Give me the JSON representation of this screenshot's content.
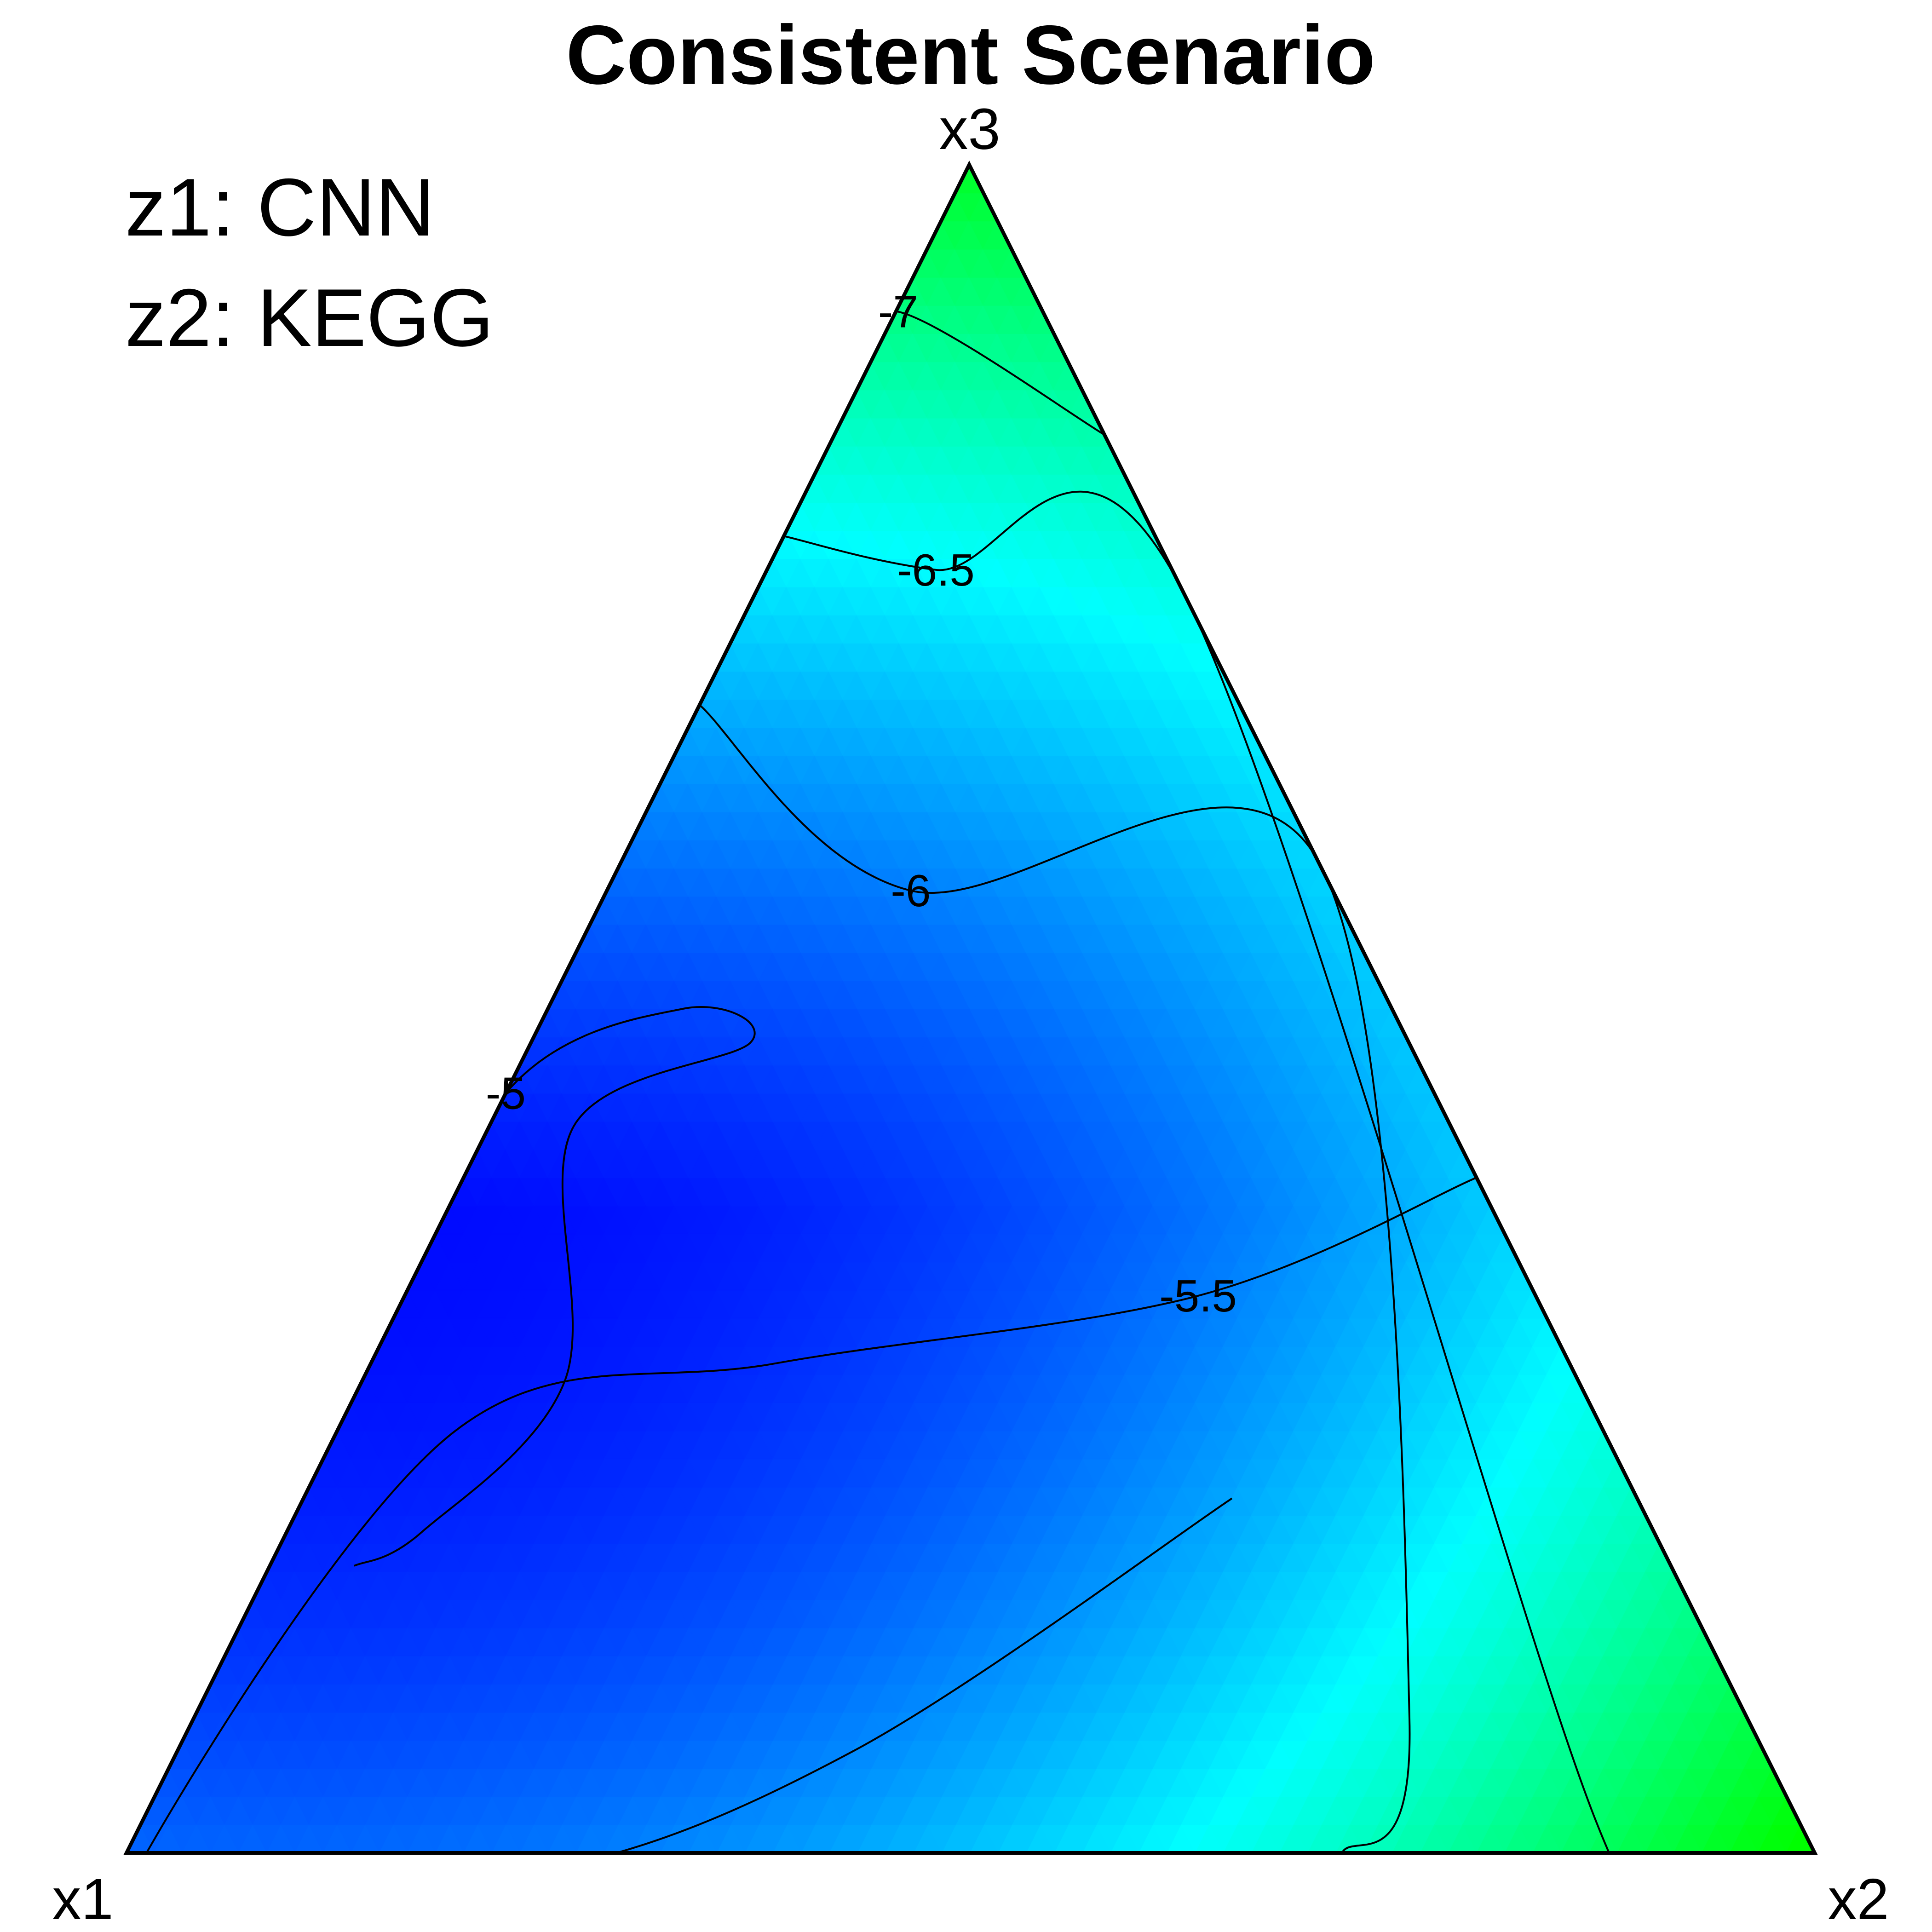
{
  "chart_data": {
    "type": "heatmap",
    "subtype": "ternary-contour",
    "title": "Consistent Scenario",
    "vertices": {
      "bottom_left": "x1",
      "bottom_right": "x2",
      "top": "x3"
    },
    "annotations": [
      "z1: CNN",
      "z2: KEGG"
    ],
    "colormap": [
      "#0000ff",
      "#0080ff",
      "#00ffff",
      "#00ff80",
      "#00ff00"
    ],
    "z_range": [
      -7.5,
      -4.9
    ],
    "contour_levels": [
      {
        "level": -5,
        "label": "-5",
        "points": [
          [
            0.73,
            0.0,
            0.27
          ],
          [
            0.55,
            0.0,
            0.45
          ],
          [
            0.42,
            0.08,
            0.5
          ],
          [
            0.39,
            0.13,
            0.48
          ],
          [
            0.52,
            0.05,
            0.43
          ],
          [
            0.6,
            0.12,
            0.28
          ],
          [
            0.73,
            0.08,
            0.19
          ],
          [
            0.78,
            0.05,
            0.17
          ]
        ]
      },
      {
        "level": -5.5,
        "label": "-5.5",
        "points": [
          [
            0.0,
            0.6,
            0.4
          ],
          [
            0.2,
            0.47,
            0.33
          ],
          [
            0.47,
            0.24,
            0.29
          ],
          [
            0.68,
            0.07,
            0.25
          ],
          [
            0.99,
            0.0,
            0.03
          ],
          [
            0.95,
            0.05,
            0.0
          ],
          [
            0.77,
            0.24,
            0.0
          ],
          [
            0.54,
            0.4,
            0.06
          ],
          [
            0.24,
            0.55,
            0.21
          ]
        ]
      },
      {
        "level": -6,
        "label": "-6",
        "points": [
          [
            0.32,
            0.0,
            0.68
          ],
          [
            0.25,
            0.18,
            0.57
          ],
          [
            0.0,
            0.41,
            0.59
          ],
          [
            0.2,
            0.72,
            0.08
          ],
          [
            0.28,
            0.72,
            0.0
          ]
        ]
      },
      {
        "level": -6.5,
        "label": "-6.5",
        "points": [
          [
            0.22,
            0.0,
            0.78
          ],
          [
            0.14,
            0.1,
            0.76
          ],
          [
            0.0,
            0.25,
            0.75
          ],
          [
            0.12,
            0.86,
            0.02
          ],
          [
            0.08,
            0.92,
            0.0
          ]
        ]
      },
      {
        "level": -7,
        "label": "-7",
        "points": [
          [
            0.13,
            0.0,
            0.87
          ],
          [
            0.07,
            0.02,
            0.88
          ],
          [
            0.0,
            0.16,
            0.84
          ]
        ]
      }
    ]
  }
}
